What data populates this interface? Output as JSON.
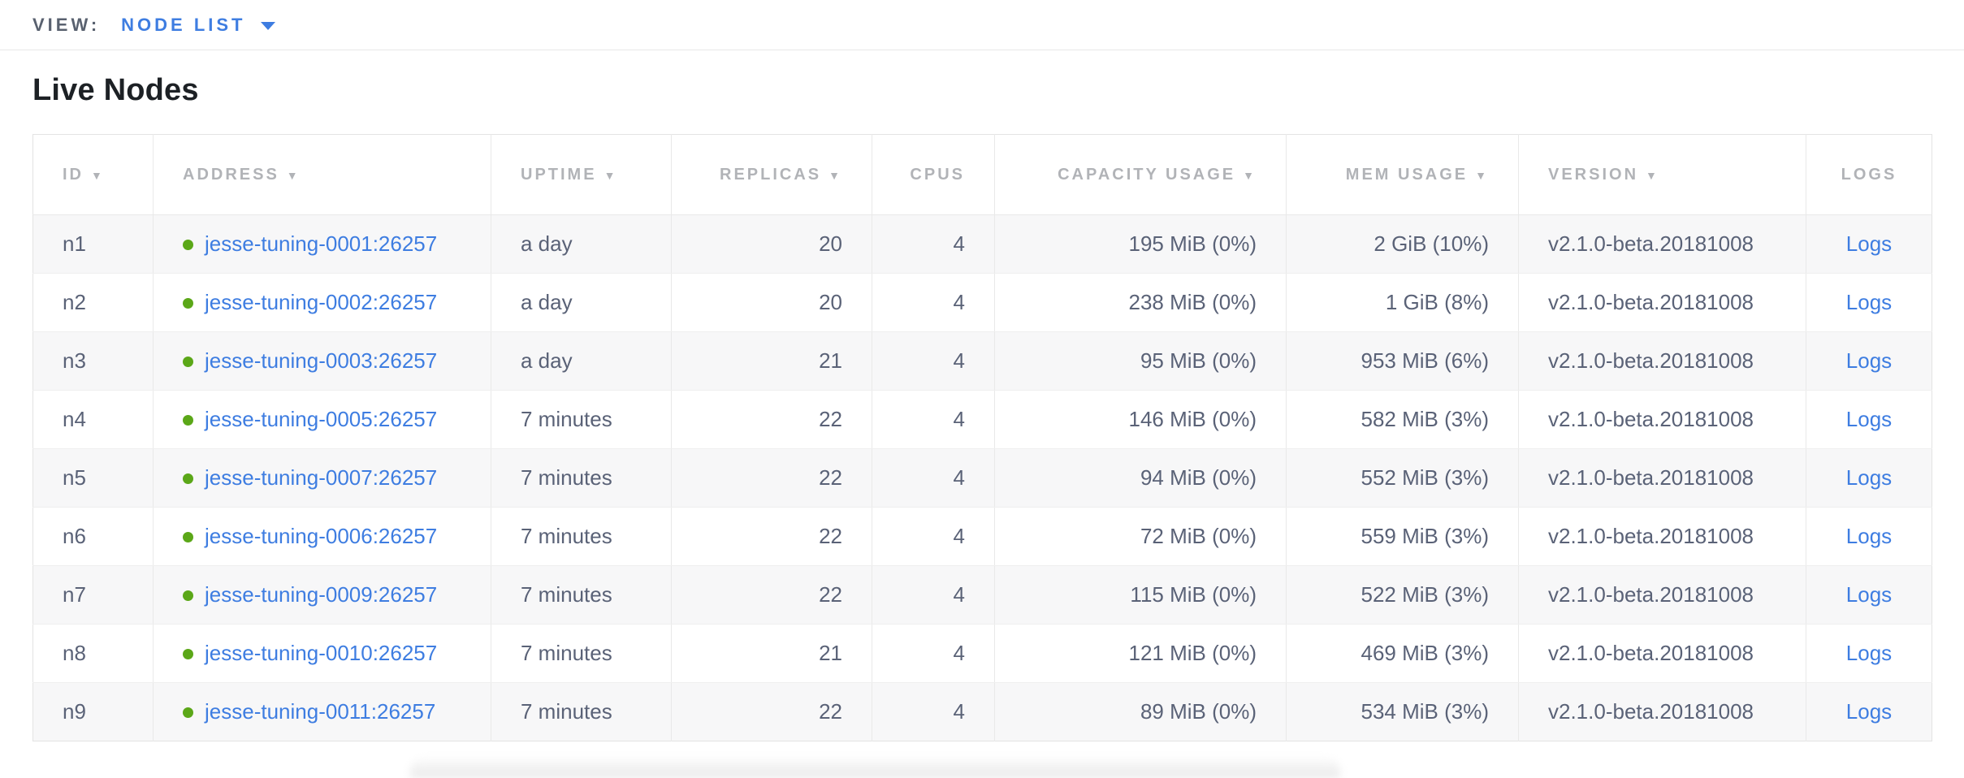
{
  "view_bar": {
    "label": "VIEW:",
    "selected_view": "NODE LIST"
  },
  "page": {
    "title": "Live Nodes"
  },
  "icons": {
    "sort_desc": "▼",
    "caret_down": "▾",
    "live_status_dot": "green-circle"
  },
  "colors": {
    "accent_blue": "#3e7de1",
    "status_green": "#5ba718",
    "header_gray": "#b1b3b7",
    "text_slate": "#5a6277"
  },
  "table": {
    "columns": [
      {
        "label": "ID",
        "sortable": true
      },
      {
        "label": "ADDRESS",
        "sortable": true
      },
      {
        "label": "UPTIME",
        "sortable": true
      },
      {
        "label": "REPLICAS",
        "sortable": true
      },
      {
        "label": "CPUS",
        "sortable": false
      },
      {
        "label": "CAPACITY USAGE",
        "sortable": true
      },
      {
        "label": "MEM USAGE",
        "sortable": true
      },
      {
        "label": "VERSION",
        "sortable": true
      },
      {
        "label": "LOGS",
        "sortable": false
      }
    ],
    "rows": [
      {
        "id": "n1",
        "address": "jesse-tuning-0001:26257",
        "uptime": "a day",
        "replicas": "20",
        "cpus": "4",
        "capacity": "195 MiB (0%)",
        "mem": "2 GiB (10%)",
        "version": "v2.1.0-beta.20181008",
        "logs": "Logs"
      },
      {
        "id": "n2",
        "address": "jesse-tuning-0002:26257",
        "uptime": "a day",
        "replicas": "20",
        "cpus": "4",
        "capacity": "238 MiB (0%)",
        "mem": "1 GiB (8%)",
        "version": "v2.1.0-beta.20181008",
        "logs": "Logs"
      },
      {
        "id": "n3",
        "address": "jesse-tuning-0003:26257",
        "uptime": "a day",
        "replicas": "21",
        "cpus": "4",
        "capacity": "95 MiB (0%)",
        "mem": "953 MiB (6%)",
        "version": "v2.1.0-beta.20181008",
        "logs": "Logs"
      },
      {
        "id": "n4",
        "address": "jesse-tuning-0005:26257",
        "uptime": "7 minutes",
        "replicas": "22",
        "cpus": "4",
        "capacity": "146 MiB (0%)",
        "mem": "582 MiB (3%)",
        "version": "v2.1.0-beta.20181008",
        "logs": "Logs"
      },
      {
        "id": "n5",
        "address": "jesse-tuning-0007:26257",
        "uptime": "7 minutes",
        "replicas": "22",
        "cpus": "4",
        "capacity": "94 MiB (0%)",
        "mem": "552 MiB (3%)",
        "version": "v2.1.0-beta.20181008",
        "logs": "Logs"
      },
      {
        "id": "n6",
        "address": "jesse-tuning-0006:26257",
        "uptime": "7 minutes",
        "replicas": "22",
        "cpus": "4",
        "capacity": "72 MiB (0%)",
        "mem": "559 MiB (3%)",
        "version": "v2.1.0-beta.20181008",
        "logs": "Logs"
      },
      {
        "id": "n7",
        "address": "jesse-tuning-0009:26257",
        "uptime": "7 minutes",
        "replicas": "22",
        "cpus": "4",
        "capacity": "115 MiB (0%)",
        "mem": "522 MiB (3%)",
        "version": "v2.1.0-beta.20181008",
        "logs": "Logs"
      },
      {
        "id": "n8",
        "address": "jesse-tuning-0010:26257",
        "uptime": "7 minutes",
        "replicas": "21",
        "cpus": "4",
        "capacity": "121 MiB (0%)",
        "mem": "469 MiB (3%)",
        "version": "v2.1.0-beta.20181008",
        "logs": "Logs"
      },
      {
        "id": "n9",
        "address": "jesse-tuning-0011:26257",
        "uptime": "7 minutes",
        "replicas": "22",
        "cpus": "4",
        "capacity": "89 MiB (0%)",
        "mem": "534 MiB (3%)",
        "version": "v2.1.0-beta.20181008",
        "logs": "Logs"
      }
    ]
  }
}
